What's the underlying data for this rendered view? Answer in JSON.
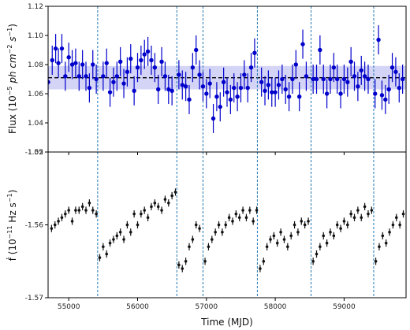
{
  "chart_data": [
    {
      "type": "scatter",
      "panel": "top",
      "ylabel_main": "Flux (10",
      "ylabel_sup1": "−5",
      "ylabel_unit": " ph cm",
      "ylabel_sup2": "−2",
      "ylabel_s": " s",
      "ylabel_sup3": "−1",
      "ylabel_close": ")",
      "ylim": [
        1.02,
        1.12
      ],
      "yticks": [
        1.02,
        1.04,
        1.06,
        1.08,
        1.1,
        1.12
      ],
      "ytick_labels": [
        "1.02",
        "1.04",
        "1.06",
        "1.08",
        "1.10",
        "1.12"
      ],
      "mean_line": 1.071,
      "band": [
        1.063,
        1.079
      ],
      "err": 0.01,
      "points": [
        [
          54700,
          1.068
        ],
        [
          54760,
          1.083
        ],
        [
          54810,
          1.091
        ],
        [
          54850,
          1.081
        ],
        [
          54900,
          1.091
        ],
        [
          54950,
          1.072
        ],
        [
          55000,
          1.085
        ],
        [
          55050,
          1.08
        ],
        [
          55100,
          1.081
        ],
        [
          55150,
          1.072
        ],
        [
          55200,
          1.08
        ],
        [
          55250,
          1.072
        ],
        [
          55300,
          1.064
        ],
        [
          55350,
          1.08
        ],
        [
          55400,
          1.07
        ],
        [
          55500,
          1.072
        ],
        [
          55550,
          1.081
        ],
        [
          55600,
          1.061
        ],
        [
          55650,
          1.068
        ],
        [
          55700,
          1.072
        ],
        [
          55750,
          1.082
        ],
        [
          55800,
          1.067
        ],
        [
          55850,
          1.075
        ],
        [
          55900,
          1.084
        ],
        [
          55950,
          1.062
        ],
        [
          56000,
          1.078
        ],
        [
          56050,
          1.083
        ],
        [
          56100,
          1.087
        ],
        [
          56150,
          1.089
        ],
        [
          56200,
          1.083
        ],
        [
          56250,
          1.078
        ],
        [
          56300,
          1.063
        ],
        [
          56350,
          1.082
        ],
        [
          56400,
          1.072
        ],
        [
          56450,
          1.063
        ],
        [
          56500,
          1.062
        ],
        [
          56600,
          1.073
        ],
        [
          56650,
          1.066
        ],
        [
          56700,
          1.065
        ],
        [
          56750,
          1.056
        ],
        [
          56800,
          1.078
        ],
        [
          56850,
          1.09
        ],
        [
          56900,
          1.073
        ],
        [
          56950,
          1.065
        ],
        [
          57000,
          1.06
        ],
        [
          57050,
          1.067
        ],
        [
          57100,
          1.043
        ],
        [
          57150,
          1.058
        ],
        [
          57200,
          1.051
        ],
        [
          57250,
          1.068
        ],
        [
          57300,
          1.061
        ],
        [
          57350,
          1.056
        ],
        [
          57400,
          1.064
        ],
        [
          57450,
          1.058
        ],
        [
          57500,
          1.064
        ],
        [
          57550,
          1.073
        ],
        [
          57600,
          1.064
        ],
        [
          57650,
          1.078
        ],
        [
          57700,
          1.088
        ],
        [
          57800,
          1.068
        ],
        [
          57850,
          1.062
        ],
        [
          57900,
          1.066
        ],
        [
          57950,
          1.061
        ],
        [
          58000,
          1.061
        ],
        [
          58050,
          1.066
        ],
        [
          58100,
          1.07
        ],
        [
          58150,
          1.063
        ],
        [
          58200,
          1.058
        ],
        [
          58250,
          1.07
        ],
        [
          58300,
          1.08
        ],
        [
          58350,
          1.058
        ],
        [
          58400,
          1.094
        ],
        [
          58450,
          1.072
        ],
        [
          58550,
          1.07
        ],
        [
          58600,
          1.07
        ],
        [
          58650,
          1.09
        ],
        [
          58700,
          1.07
        ],
        [
          58750,
          1.06
        ],
        [
          58800,
          1.07
        ],
        [
          58850,
          1.078
        ],
        [
          58900,
          1.07
        ],
        [
          58950,
          1.06
        ],
        [
          59000,
          1.07
        ],
        [
          59050,
          1.068
        ],
        [
          59100,
          1.082
        ],
        [
          59150,
          1.072
        ],
        [
          59200,
          1.065
        ],
        [
          59250,
          1.076
        ],
        [
          59300,
          1.072
        ],
        [
          59350,
          1.07
        ],
        [
          59450,
          1.06
        ],
        [
          59500,
          1.097
        ],
        [
          59550,
          1.059
        ],
        [
          59600,
          1.056
        ],
        [
          59650,
          1.063
        ],
        [
          59700,
          1.078
        ],
        [
          59750,
          1.075
        ],
        [
          59800,
          1.064
        ],
        [
          59850,
          1.07
        ]
      ]
    },
    {
      "type": "scatter",
      "panel": "bottom",
      "ylabel_main": "ḟ (10",
      "ylabel_sup1": "−11",
      "ylabel_unit": " Hz s",
      "ylabel_sup2": "−1",
      "ylabel_close": ")",
      "xlabel": "Time (MJD)",
      "ylim": [
        -1.57,
        -1.55
      ],
      "yticks": [
        -1.57,
        -1.56,
        -1.55
      ],
      "ytick_labels": [
        "-1.57",
        "-1.56",
        "-1.55"
      ],
      "xlim": [
        54700,
        59900
      ],
      "xticks": [
        55000,
        56000,
        57000,
        58000,
        59000
      ],
      "xtick_labels": [
        "55000",
        "56000",
        "57000",
        "58000",
        "59000"
      ],
      "err": 0.0005,
      "glitch_epochs": [
        55420,
        56570,
        56950,
        57740,
        58520,
        59430
      ],
      "points": [
        [
          54750,
          -1.5605
        ],
        [
          54800,
          -1.56
        ],
        [
          54850,
          -1.5595
        ],
        [
          54900,
          -1.559
        ],
        [
          54950,
          -1.5585
        ],
        [
          55000,
          -1.558
        ],
        [
          55050,
          -1.5595
        ],
        [
          55100,
          -1.558
        ],
        [
          55150,
          -1.558
        ],
        [
          55200,
          -1.5575
        ],
        [
          55250,
          -1.558
        ],
        [
          55300,
          -1.557
        ],
        [
          55350,
          -1.558
        ],
        [
          55400,
          -1.5585
        ],
        [
          55450,
          -1.5645
        ],
        [
          55500,
          -1.563
        ],
        [
          55550,
          -1.564
        ],
        [
          55600,
          -1.5625
        ],
        [
          55650,
          -1.562
        ],
        [
          55700,
          -1.5615
        ],
        [
          55750,
          -1.561
        ],
        [
          55800,
          -1.562
        ],
        [
          55850,
          -1.56
        ],
        [
          55900,
          -1.561
        ],
        [
          55950,
          -1.5585
        ],
        [
          56000,
          -1.56
        ],
        [
          56050,
          -1.5585
        ],
        [
          56100,
          -1.558
        ],
        [
          56150,
          -1.559
        ],
        [
          56200,
          -1.5575
        ],
        [
          56250,
          -1.557
        ],
        [
          56300,
          -1.5575
        ],
        [
          56350,
          -1.558
        ],
        [
          56400,
          -1.5565
        ],
        [
          56450,
          -1.557
        ],
        [
          56500,
          -1.556
        ],
        [
          56550,
          -1.5555
        ],
        [
          56600,
          -1.5655
        ],
        [
          56650,
          -1.566
        ],
        [
          56700,
          -1.565
        ],
        [
          56750,
          -1.563
        ],
        [
          56800,
          -1.562
        ],
        [
          56850,
          -1.56
        ],
        [
          56900,
          -1.5605
        ],
        [
          56980,
          -1.565
        ],
        [
          57030,
          -1.563
        ],
        [
          57080,
          -1.562
        ],
        [
          57130,
          -1.561
        ],
        [
          57180,
          -1.56
        ],
        [
          57230,
          -1.561
        ],
        [
          57280,
          -1.56
        ],
        [
          57330,
          -1.559
        ],
        [
          57380,
          -1.5595
        ],
        [
          57430,
          -1.5585
        ],
        [
          57480,
          -1.559
        ],
        [
          57530,
          -1.558
        ],
        [
          57580,
          -1.559
        ],
        [
          57630,
          -1.558
        ],
        [
          57680,
          -1.5595
        ],
        [
          57730,
          -1.558
        ],
        [
          57780,
          -1.566
        ],
        [
          57830,
          -1.565
        ],
        [
          57880,
          -1.563
        ],
        [
          57930,
          -1.562
        ],
        [
          57980,
          -1.5615
        ],
        [
          58030,
          -1.5625
        ],
        [
          58080,
          -1.561
        ],
        [
          58130,
          -1.562
        ],
        [
          58180,
          -1.563
        ],
        [
          58230,
          -1.5615
        ],
        [
          58280,
          -1.56
        ],
        [
          58330,
          -1.561
        ],
        [
          58380,
          -1.5595
        ],
        [
          58430,
          -1.56
        ],
        [
          58480,
          -1.5595
        ],
        [
          58550,
          -1.565
        ],
        [
          58600,
          -1.564
        ],
        [
          58650,
          -1.563
        ],
        [
          58700,
          -1.5615
        ],
        [
          58750,
          -1.5625
        ],
        [
          58800,
          -1.561
        ],
        [
          58850,
          -1.5615
        ],
        [
          58900,
          -1.56
        ],
        [
          58950,
          -1.5605
        ],
        [
          59000,
          -1.5595
        ],
        [
          59050,
          -1.56
        ],
        [
          59100,
          -1.5585
        ],
        [
          59150,
          -1.559
        ],
        [
          59200,
          -1.558
        ],
        [
          59250,
          -1.559
        ],
        [
          59300,
          -1.5575
        ],
        [
          59350,
          -1.5585
        ],
        [
          59400,
          -1.558
        ],
        [
          59460,
          -1.565
        ],
        [
          59510,
          -1.563
        ],
        [
          59560,
          -1.5615
        ],
        [
          59610,
          -1.5625
        ],
        [
          59660,
          -1.561
        ],
        [
          59710,
          -1.56
        ],
        [
          59760,
          -1.559
        ],
        [
          59810,
          -1.56
        ],
        [
          59860,
          -1.5585
        ]
      ]
    }
  ],
  "colors": {
    "top_points": "#0000cc",
    "bottom_points": "#111111",
    "band": "#b8b8f0",
    "glitch_lines": "#1f77b4",
    "mean_line": "#000000"
  }
}
